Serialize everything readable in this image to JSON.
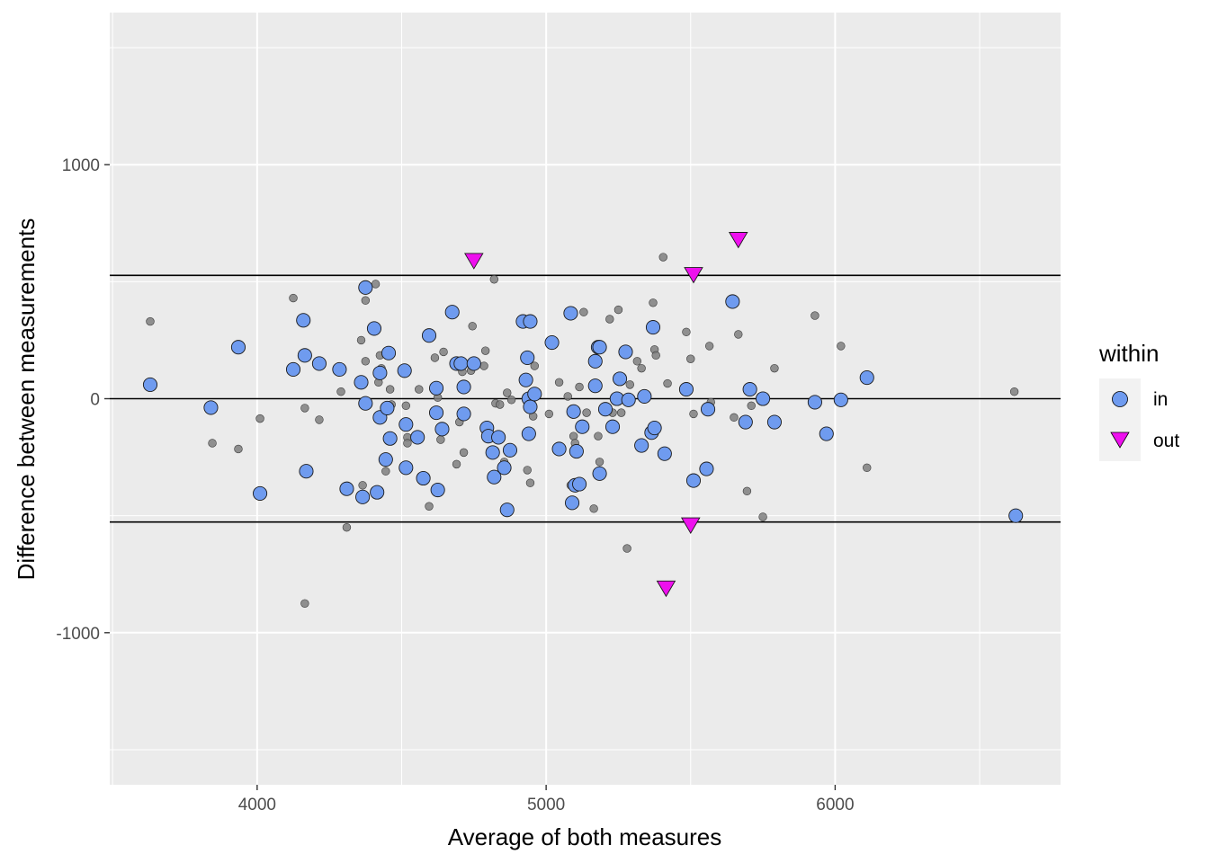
{
  "chart_data": {
    "type": "scatter",
    "title": "",
    "xlabel": "Average of both measures",
    "ylabel": "Difference between measurements",
    "xlim": [
      3490,
      6780
    ],
    "ylim": [
      -1650,
      1650
    ],
    "x_ticks": [
      4000,
      5000,
      6000
    ],
    "x_tick_labels": [
      "4000",
      "5000",
      "6000"
    ],
    "y_ticks": [
      -1000,
      0,
      1000
    ],
    "y_tick_labels": [
      "-1000",
      "0",
      "1000"
    ],
    "grid": true,
    "reference_lines": [
      527,
      0,
      -527
    ],
    "legend": {
      "title": "within",
      "position": "right",
      "entries": [
        {
          "label": "in",
          "shape": "circle",
          "color": "#6f9bef"
        },
        {
          "label": "out",
          "shape": "triangle-down",
          "color": "#ee10ee"
        }
      ]
    },
    "colors": {
      "panel_background": "#ebebeb",
      "gridline": "#ffffff",
      "background_points": "#7f7f7f",
      "in": "#6f9bef",
      "out": "#ee10ee"
    },
    "series": [
      {
        "name": "in",
        "points": [
          [
            3630,
            60
          ],
          [
            3840,
            -38
          ],
          [
            3935,
            220
          ],
          [
            4010,
            -405
          ],
          [
            4125,
            125
          ],
          [
            4160,
            335
          ],
          [
            4165,
            185
          ],
          [
            4170,
            -310
          ],
          [
            4215,
            150
          ],
          [
            4285,
            125
          ],
          [
            4310,
            -385
          ],
          [
            4360,
            70
          ],
          [
            4365,
            -420
          ],
          [
            4375,
            475
          ],
          [
            4375,
            -20
          ],
          [
            4405,
            300
          ],
          [
            4415,
            -400
          ],
          [
            4425,
            110
          ],
          [
            4425,
            -80
          ],
          [
            4445,
            -260
          ],
          [
            4450,
            -40
          ],
          [
            4455,
            195
          ],
          [
            4460,
            -170
          ],
          [
            4510,
            120
          ],
          [
            4515,
            -110
          ],
          [
            4515,
            -295
          ],
          [
            4555,
            -165
          ],
          [
            4575,
            -340
          ],
          [
            4595,
            270
          ],
          [
            4620,
            45
          ],
          [
            4620,
            -60
          ],
          [
            4625,
            -390
          ],
          [
            4640,
            -130
          ],
          [
            4675,
            370
          ],
          [
            4690,
            150
          ],
          [
            4705,
            150
          ],
          [
            4715,
            50
          ],
          [
            4715,
            -65
          ],
          [
            4750,
            150
          ],
          [
            4795,
            -125
          ],
          [
            4800,
            -160
          ],
          [
            4815,
            -230
          ],
          [
            4820,
            -335
          ],
          [
            4835,
            -165
          ],
          [
            4855,
            -295
          ],
          [
            4865,
            -475
          ],
          [
            4875,
            -220
          ],
          [
            4920,
            330
          ],
          [
            4930,
            80
          ],
          [
            4935,
            175
          ],
          [
            4940,
            -150
          ],
          [
            4940,
            0
          ],
          [
            4945,
            -35
          ],
          [
            4945,
            330
          ],
          [
            4960,
            20
          ],
          [
            5020,
            240
          ],
          [
            5045,
            -215
          ],
          [
            5085,
            365
          ],
          [
            5090,
            -445
          ],
          [
            5095,
            -55
          ],
          [
            5100,
            -370
          ],
          [
            5105,
            -225
          ],
          [
            5115,
            -365
          ],
          [
            5125,
            -120
          ],
          [
            5170,
            55
          ],
          [
            5170,
            160
          ],
          [
            5180,
            220
          ],
          [
            5185,
            220
          ],
          [
            5185,
            -320
          ],
          [
            5205,
            -45
          ],
          [
            5230,
            -120
          ],
          [
            5245,
            0
          ],
          [
            5255,
            85
          ],
          [
            5275,
            200
          ],
          [
            5285,
            -5
          ],
          [
            5330,
            -200
          ],
          [
            5340,
            10
          ],
          [
            5365,
            -145
          ],
          [
            5370,
            305
          ],
          [
            5375,
            -125
          ],
          [
            5410,
            -235
          ],
          [
            5485,
            40
          ],
          [
            5510,
            -350
          ],
          [
            5555,
            -300
          ],
          [
            5560,
            -45
          ],
          [
            5645,
            415
          ],
          [
            5690,
            -100
          ],
          [
            5705,
            40
          ],
          [
            5750,
            0
          ],
          [
            5790,
            -100
          ],
          [
            5930,
            -15
          ],
          [
            5970,
            -150
          ],
          [
            6020,
            -5
          ],
          [
            6110,
            90
          ],
          [
            6625,
            -500
          ]
        ]
      },
      {
        "name": "out",
        "points": [
          [
            4750,
            590
          ],
          [
            5415,
            -810
          ],
          [
            5500,
            -540
          ],
          [
            5510,
            530
          ],
          [
            5665,
            680
          ]
        ]
      },
      {
        "name": "",
        "points": [
          [
            3630,
            330
          ],
          [
            3845,
            -190
          ],
          [
            3935,
            -215
          ],
          [
            4010,
            -85
          ],
          [
            4125,
            430
          ],
          [
            4165,
            -40
          ],
          [
            4215,
            -90
          ],
          [
            4290,
            30
          ],
          [
            4310,
            -550
          ],
          [
            4360,
            250
          ],
          [
            4365,
            -370
          ],
          [
            4375,
            160
          ],
          [
            4375,
            420
          ],
          [
            4410,
            490
          ],
          [
            4420,
            70
          ],
          [
            4425,
            185
          ],
          [
            4430,
            130
          ],
          [
            4445,
            -310
          ],
          [
            4460,
            40
          ],
          [
            4465,
            -25
          ],
          [
            4515,
            -30
          ],
          [
            4520,
            -165
          ],
          [
            4520,
            -190
          ],
          [
            4560,
            40
          ],
          [
            4595,
            -460
          ],
          [
            4615,
            175
          ],
          [
            4625,
            5
          ],
          [
            4635,
            -175
          ],
          [
            4645,
            200
          ],
          [
            4690,
            -280
          ],
          [
            4700,
            -100
          ],
          [
            4710,
            115
          ],
          [
            4715,
            -230
          ],
          [
            4740,
            120
          ],
          [
            4745,
            310
          ],
          [
            4785,
            140
          ],
          [
            4790,
            205
          ],
          [
            4820,
            510
          ],
          [
            4825,
            -20
          ],
          [
            4840,
            -25
          ],
          [
            4855,
            -270
          ],
          [
            4865,
            25
          ],
          [
            4880,
            -5
          ],
          [
            4935,
            -305
          ],
          [
            4945,
            -360
          ],
          [
            4955,
            -75
          ],
          [
            4960,
            140
          ],
          [
            5010,
            -65
          ],
          [
            5045,
            70
          ],
          [
            5075,
            10
          ],
          [
            5085,
            -370
          ],
          [
            5095,
            -160
          ],
          [
            5100,
            -190
          ],
          [
            5115,
            50
          ],
          [
            5130,
            370
          ],
          [
            5140,
            -60
          ],
          [
            5165,
            -470
          ],
          [
            5180,
            -160
          ],
          [
            5185,
            -270
          ],
          [
            5220,
            340
          ],
          [
            5230,
            -60
          ],
          [
            5250,
            380
          ],
          [
            5260,
            -60
          ],
          [
            5280,
            -640
          ],
          [
            5290,
            60
          ],
          [
            5315,
            160
          ],
          [
            5330,
            130
          ],
          [
            5370,
            410
          ],
          [
            5375,
            210
          ],
          [
            5380,
            185
          ],
          [
            5405,
            605
          ],
          [
            5420,
            65
          ],
          [
            5485,
            285
          ],
          [
            5500,
            170
          ],
          [
            5510,
            -65
          ],
          [
            5565,
            225
          ],
          [
            5570,
            -15
          ],
          [
            5650,
            -80
          ],
          [
            5665,
            275
          ],
          [
            5695,
            -395
          ],
          [
            5710,
            -30
          ],
          [
            5750,
            -505
          ],
          [
            5790,
            130
          ],
          [
            5930,
            355
          ],
          [
            6020,
            225
          ],
          [
            6110,
            -295
          ],
          [
            6620,
            30
          ],
          [
            4165,
            -875
          ]
        ]
      }
    ]
  }
}
